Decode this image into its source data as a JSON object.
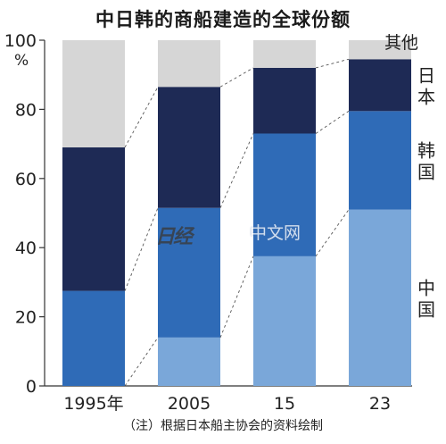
{
  "title": "中日韩的商船建造的全球份额",
  "note": "（注）根据日本船主协会的资料绘制",
  "watermark": {
    "logo": "日经",
    "text": "中文网"
  },
  "chart_data": {
    "type": "bar",
    "stacked": true,
    "categories": [
      "1995年",
      "2005",
      "15",
      "23"
    ],
    "ylim": [
      0,
      100
    ],
    "yticks": [
      0,
      20,
      40,
      60,
      80,
      100
    ],
    "yunit": "%",
    "series": [
      {
        "name": "中国",
        "color": "#7aa7d9",
        "values": [
          0,
          14,
          37.5,
          51
        ]
      },
      {
        "name": "韩国",
        "color": "#2f6bb7",
        "values": [
          27.5,
          37.5,
          35.5,
          28.5
        ]
      },
      {
        "name": "日本",
        "color": "#1e2a55",
        "values": [
          41.5,
          35,
          19,
          15
        ]
      },
      {
        "name": "其他",
        "color": "#d6d6d6",
        "values": [
          31,
          13.5,
          8,
          5.5
        ]
      }
    ]
  }
}
